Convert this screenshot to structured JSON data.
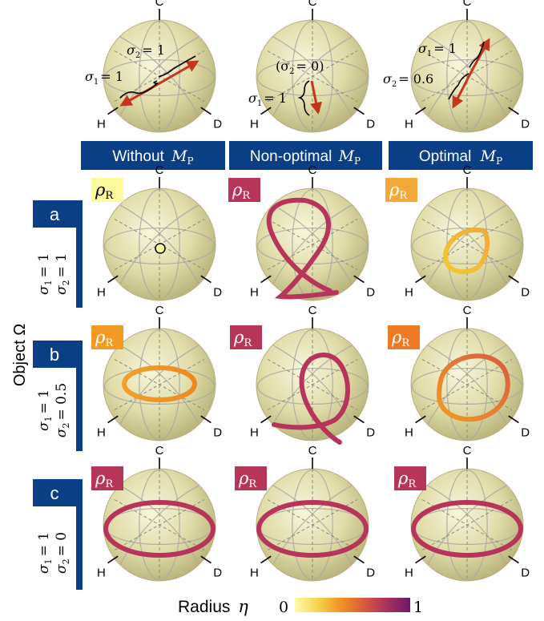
{
  "columns": [
    {
      "text": "Without",
      "math": "M",
      "sub": "P"
    },
    {
      "text": "Non-optimal",
      "math": "M",
      "sub": "P"
    },
    {
      "text": "Optimal",
      "math": "M",
      "sub": "P"
    }
  ],
  "rows": [
    {
      "label": "a",
      "s1": "σ",
      "s1sub": "1",
      "s1val": "= 1",
      "s2": "σ",
      "s2sub": "2",
      "s2val": "= 1"
    },
    {
      "label": "b",
      "s1": "σ",
      "s1sub": "1",
      "s1val": "= 1",
      "s2": "σ",
      "s2sub": "2",
      "s2val": "= 0.5"
    },
    {
      "label": "c",
      "s1": "σ",
      "s1sub": "1",
      "s1val": "= 1",
      "s2": "σ",
      "s2sub": "2",
      "s2val": "= 0"
    }
  ],
  "row_axis_label": "Object Ω",
  "axis_labels": {
    "top": "C",
    "left": "H",
    "right": "D"
  },
  "rho": {
    "main": "ρ",
    "sub": "R"
  },
  "top_annotations": [
    {
      "a1": "σ",
      "a1sub": "1",
      "a1val": "= 1",
      "a2": "σ",
      "a2sub": "2",
      "a2val": "= 1"
    },
    {
      "a1": "σ",
      "a1sub": "1",
      "a1val": "= 1",
      "a2": "(σ",
      "a2sub": "2",
      "a2val": "= 0)"
    },
    {
      "a1": "σ",
      "a1sub": "1",
      "a1val": "= 1",
      "a2": "σ",
      "a2sub": "2",
      "a2val": "= 0.6"
    }
  ],
  "colorbar": {
    "label": "Radius",
    "symbol": "η",
    "min": "0",
    "max": "1"
  },
  "colors": {
    "navy": "#0a3f86",
    "arrow": "#c6341f",
    "sphere_light": "#f6f5d8",
    "sphere_dark": "#b5b079"
  },
  "rho_badge_colors": [
    [
      "#fbfb9e",
      "#b8355a",
      "#f3a93a"
    ],
    [
      "#f39a24",
      "#b8355a",
      "#ee7a26"
    ],
    [
      "#b8355a",
      "#b8355a",
      "#b8355a"
    ]
  ]
}
